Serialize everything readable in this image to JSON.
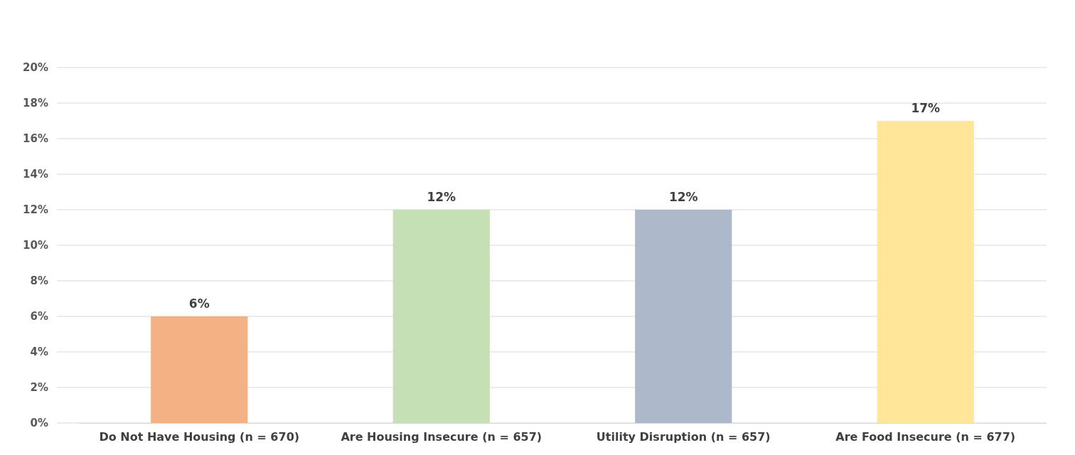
{
  "chart_data": {
    "type": "bar",
    "categories": [
      "Do Not Have Housing (n = 670)",
      "Are Housing Insecure (n = 657)",
      "Utility Disruption (n = 657)",
      "Are Food Insecure (n = 677)"
    ],
    "values": [
      6,
      12,
      12,
      17
    ],
    "colors": [
      "#f4b183",
      "#c5e0b4",
      "#adb9ca",
      "#ffe699"
    ],
    "value_labels": [
      "6%",
      "12%",
      "12%",
      "17%"
    ],
    "ylim": [
      0,
      20
    ],
    "yticks": [
      {
        "value": 0,
        "label": "0%"
      },
      {
        "value": 2,
        "label": "2%"
      },
      {
        "value": 4,
        "label": "4%"
      },
      {
        "value": 6,
        "label": "6%"
      },
      {
        "value": 8,
        "label": "8%"
      },
      {
        "value": 10,
        "label": "10%"
      },
      {
        "value": 12,
        "label": "12%"
      },
      {
        "value": 14,
        "label": "14%"
      },
      {
        "value": 16,
        "label": "16%"
      },
      {
        "value": 18,
        "label": "18%"
      },
      {
        "value": 20,
        "label": "20%"
      }
    ],
    "grid": "y"
  }
}
